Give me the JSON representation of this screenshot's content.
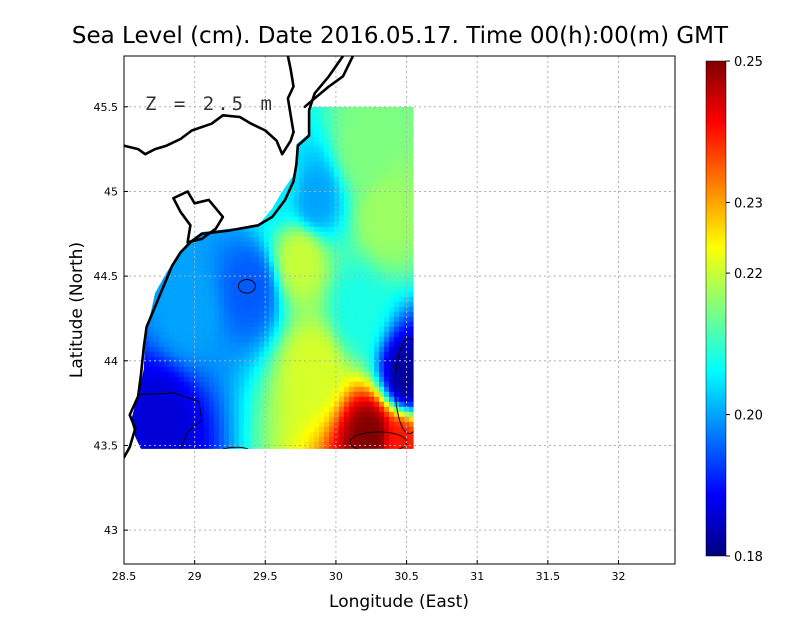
{
  "chart_data": {
    "type": "heatmap",
    "title": "Sea Level (cm). Date 2016.05.17. Time 00(h):00(m) GMT",
    "xlabel": "Longitude (East)",
    "ylabel": "Latitude (North)",
    "annotation": "Z = 2.5 m",
    "xlim": [
      28.5,
      32.4
    ],
    "ylim": [
      42.8,
      45.8
    ],
    "xticks": [
      "28.5",
      "29",
      "29.5",
      "30",
      "30.5",
      "31",
      "31.5",
      "32"
    ],
    "yticks": [
      "43",
      "43.5",
      "44",
      "44.5",
      "45",
      "45.5"
    ],
    "grid": true,
    "colorbar": {
      "min": 0.18,
      "max": 0.25,
      "ticks": [
        "0.25",
        "0.23",
        "0.22",
        "0.20",
        "0.18"
      ],
      "colors": [
        "#00007f",
        "#0000ff",
        "#007fff",
        "#00ffff",
        "#7fff7f",
        "#ffff00",
        "#ff7f00",
        "#ff0000",
        "#7f0000"
      ]
    },
    "domain_extent": {
      "lon": [
        28.62,
        30.55
      ],
      "lat": [
        43.48,
        45.5
      ]
    },
    "field_features": [
      {
        "lon": 28.75,
        "lat": 43.65,
        "value": 0.186
      },
      {
        "lon": 29.4,
        "lat": 44.43,
        "value": 0.195
      },
      {
        "lon": 29.85,
        "lat": 43.95,
        "value": 0.221
      },
      {
        "lon": 29.75,
        "lat": 44.6,
        "value": 0.22
      },
      {
        "lon": 30.2,
        "lat": 45.25,
        "value": 0.215
      },
      {
        "lon": 30.35,
        "lat": 44.85,
        "value": 0.217
      },
      {
        "lon": 30.5,
        "lat": 43.9,
        "value": 0.182
      },
      {
        "lon": 30.25,
        "lat": 43.55,
        "value": 0.25
      },
      {
        "lon": 30.45,
        "lat": 43.5,
        "value": 0.24
      },
      {
        "lon": 29.85,
        "lat": 44.95,
        "value": 0.2
      },
      {
        "lon": 28.95,
        "lat": 44.3,
        "value": 0.2
      },
      {
        "lon": 29.6,
        "lat": 45.05,
        "value": 0.205
      },
      {
        "lon": 30.15,
        "lat": 44.3,
        "value": 0.208
      }
    ]
  }
}
